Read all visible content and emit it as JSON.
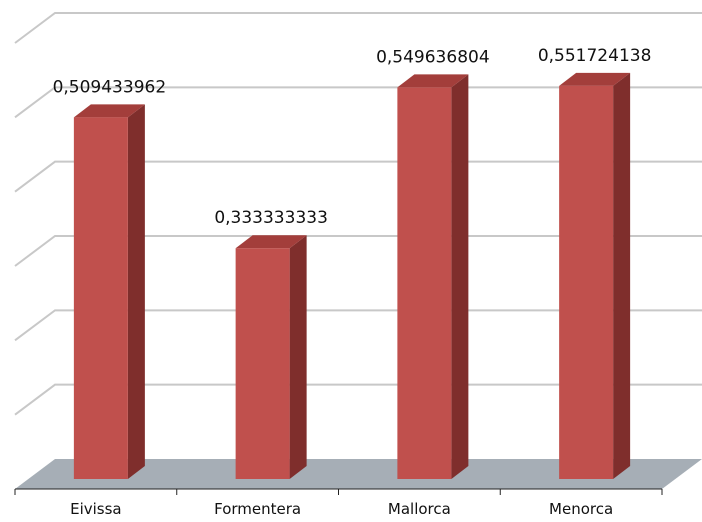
{
  "chart_data": {
    "type": "bar",
    "style": "3d-column",
    "categories": [
      "Eivissa",
      "Formentera",
      "Mallorca",
      "Menorca"
    ],
    "series": [
      {
        "values": [
          0.509433962,
          0.333333333,
          0.549636804,
          0.551724138
        ]
      }
    ],
    "data_labels": [
      "0,509433962",
      "0,333333333",
      "0,549636804",
      "0,551724138"
    ],
    "ylim": [
      0,
      0.6
    ],
    "ytick_labels_visible": false,
    "grid": true,
    "legend": "none",
    "colors": {
      "bar_front": "#c0504d",
      "bar_side": "#7f2e2c",
      "bar_top": "#a33e3b",
      "floor": "#a6aeb6",
      "gridline": "#c8c8c8"
    }
  }
}
